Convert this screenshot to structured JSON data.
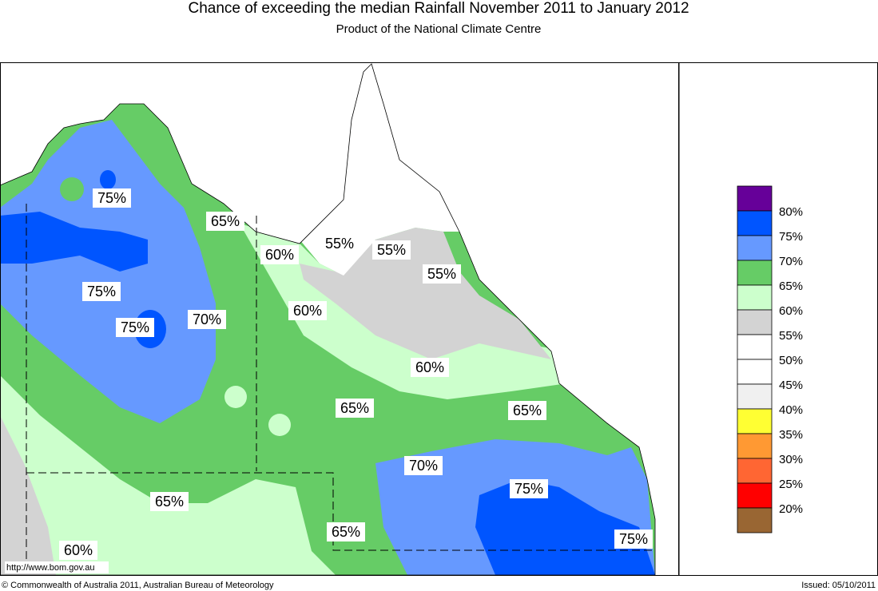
{
  "header": {
    "title": "Chance of exceeding the median Rainfall November 2011 to January 2012",
    "subtitle": "Product of the National Climate Centre"
  },
  "map": {
    "labels": [
      "75%",
      "65%",
      "60%",
      "55%",
      "55%",
      "55%",
      "75%",
      "70%",
      "75%",
      "60%",
      "60%",
      "65%",
      "65%",
      "70%",
      "75%",
      "65%",
      "65%",
      "75%",
      "60%"
    ],
    "url": "http://www.bom.gov.au"
  },
  "legend": {
    "colors": [
      "#660099",
      "#0055ff",
      "#6699ff",
      "#66cc66",
      "#ccffcc",
      "#d3d3d3",
      "#ffffff",
      "#ffffff",
      "#f0f0f0",
      "#ffff33",
      "#ff9933",
      "#ff6633",
      "#ff0000",
      "#996633"
    ],
    "labels": [
      "80%",
      "75%",
      "70%",
      "65%",
      "60%",
      "55%",
      "50%",
      "45%",
      "40%",
      "35%",
      "30%",
      "25%",
      "20%"
    ]
  },
  "footer": {
    "copyright": "© Commonwealth of Australia 2011, Australian Bureau of Meteorology",
    "issued": "Issued: 05/10/2011"
  }
}
